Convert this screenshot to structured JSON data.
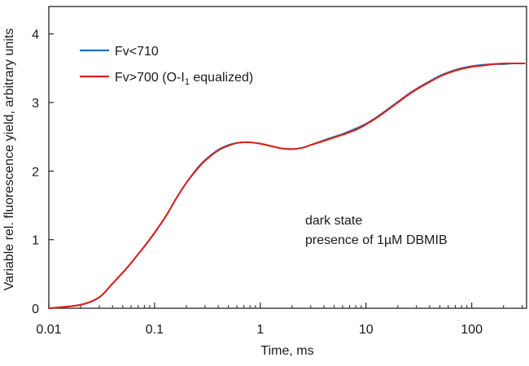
{
  "chart_data": {
    "type": "line",
    "xscale": "log",
    "xlim": [
      0.01,
      330
    ],
    "ylim": [
      0,
      4.4
    ],
    "xlabel": "Time, ms",
    "ylabel": "Variable rel. fluorescence yield, arbitrary units",
    "xticks": [
      {
        "value": 0.01,
        "label": "0.01"
      },
      {
        "value": 0.1,
        "label": "0.1"
      },
      {
        "value": 1,
        "label": "1"
      },
      {
        "value": 10,
        "label": "10"
      },
      {
        "value": 100,
        "label": "100"
      }
    ],
    "yticks": [
      {
        "value": 0,
        "label": "0"
      },
      {
        "value": 1,
        "label": "1"
      },
      {
        "value": 2,
        "label": "2"
      },
      {
        "value": 3,
        "label": "3"
      },
      {
        "value": 4,
        "label": "4"
      }
    ],
    "grid": false,
    "legend_position": "top-left",
    "legend": [
      {
        "text": "Fv<710",
        "sub": "",
        "after": "",
        "color": "#1f6fb5"
      },
      {
        "text": "Fv>700 (O-I",
        "sub": "1",
        "after": " equalized)",
        "color": "#e0201b"
      }
    ],
    "series": [
      {
        "name": "Fv<710",
        "color": "#1f6fb5",
        "x": [
          0.01,
          0.02,
          0.03,
          0.04,
          0.05,
          0.06,
          0.07,
          0.08,
          0.1,
          0.13,
          0.16,
          0.2,
          0.25,
          0.3,
          0.4,
          0.5,
          0.6,
          0.7,
          0.8,
          1.0,
          1.3,
          1.6,
          2.0,
          2.5,
          3.0,
          4.0,
          5.0,
          6.0,
          8.0,
          10,
          13,
          16,
          20,
          25,
          30,
          40,
          50,
          60,
          80,
          100,
          130,
          160,
          200,
          250,
          320
        ],
        "y": [
          0.0,
          0.05,
          0.16,
          0.36,
          0.52,
          0.66,
          0.79,
          0.9,
          1.1,
          1.36,
          1.6,
          1.83,
          2.03,
          2.16,
          2.31,
          2.38,
          2.41,
          2.42,
          2.42,
          2.4,
          2.36,
          2.33,
          2.32,
          2.34,
          2.38,
          2.45,
          2.5,
          2.54,
          2.62,
          2.69,
          2.8,
          2.9,
          3.01,
          3.12,
          3.2,
          3.31,
          3.39,
          3.44,
          3.5,
          3.53,
          3.55,
          3.56,
          3.56,
          3.57,
          3.57
        ]
      },
      {
        "name": "Fv>700 (O-I1 equalized)",
        "color": "#e0201b",
        "x": [
          0.01,
          0.02,
          0.03,
          0.04,
          0.05,
          0.06,
          0.07,
          0.08,
          0.1,
          0.13,
          0.16,
          0.2,
          0.25,
          0.3,
          0.4,
          0.5,
          0.6,
          0.7,
          0.8,
          1.0,
          1.3,
          1.6,
          2.0,
          2.5,
          3.0,
          4.0,
          5.0,
          6.0,
          8.0,
          10,
          13,
          16,
          20,
          25,
          30,
          40,
          50,
          60,
          80,
          100,
          130,
          160,
          200,
          250,
          320
        ],
        "y": [
          0.0,
          0.05,
          0.16,
          0.36,
          0.52,
          0.66,
          0.79,
          0.9,
          1.1,
          1.36,
          1.6,
          1.83,
          2.02,
          2.15,
          2.3,
          2.37,
          2.41,
          2.42,
          2.42,
          2.4,
          2.36,
          2.33,
          2.32,
          2.34,
          2.38,
          2.44,
          2.49,
          2.53,
          2.6,
          2.68,
          2.79,
          2.89,
          3.0,
          3.11,
          3.19,
          3.3,
          3.38,
          3.43,
          3.49,
          3.52,
          3.54,
          3.56,
          3.57,
          3.57,
          3.57
        ]
      }
    ],
    "annotation": [
      "dark state",
      "presence of 1µM DBMIB"
    ]
  }
}
